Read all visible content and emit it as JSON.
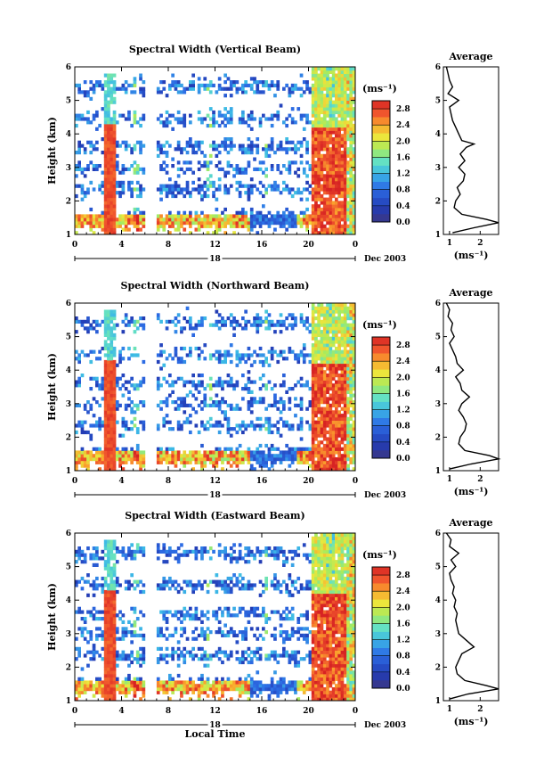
{
  "chart_data": [
    {
      "type": "heatmap",
      "title": "Spectral Width (Vertical Beam)",
      "ylabel": "Height (km)",
      "xlabel": "",
      "xlim": [
        0,
        24
      ],
      "ylim": [
        1,
        6
      ],
      "xticks": [
        "0",
        "4",
        "8",
        "12",
        "16",
        "20",
        "0"
      ],
      "yticks": [
        "1",
        "2",
        "3",
        "4",
        "5",
        "6"
      ],
      "date_axis": {
        "day": "18",
        "suffix": "Dec 2003"
      },
      "colorbar": {
        "unit": "(ms⁻¹)",
        "ticks": [
          "0.0",
          "0.4",
          "0.8",
          "1.2",
          "1.6",
          "2.0",
          "2.4",
          "2.8"
        ],
        "range": [
          0,
          3.0
        ]
      },
      "profile": {
        "title": "Average",
        "xlabel": "(ms⁻¹)",
        "xticks": [
          "1",
          "2"
        ],
        "xlim": [
          0.8,
          2.6
        ],
        "heights": [
          1.05,
          1.2,
          1.35,
          1.45,
          1.6,
          1.8,
          2.0,
          2.2,
          2.4,
          2.6,
          2.8,
          3.0,
          3.2,
          3.4,
          3.6,
          3.7,
          3.8,
          4.0,
          4.2,
          4.4,
          4.6,
          4.8,
          5.0,
          5.2,
          5.4,
          5.6,
          5.8,
          6.0
        ],
        "values": [
          1.1,
          1.8,
          2.6,
          2.2,
          1.4,
          1.15,
          1.2,
          1.35,
          1.25,
          1.45,
          1.5,
          1.3,
          1.5,
          1.35,
          1.55,
          1.8,
          1.4,
          1.3,
          1.2,
          1.1,
          1.05,
          1.0,
          1.3,
          0.95,
          1.1,
          1.0,
          0.95,
          0.9
        ]
      }
    },
    {
      "type": "heatmap",
      "title": "Spectral Width (Northward Beam)",
      "ylabel": "Height (km)",
      "xlabel": "",
      "xlim": [
        0,
        24
      ],
      "ylim": [
        1,
        6
      ],
      "xticks": [
        "0",
        "4",
        "8",
        "12",
        "16",
        "20",
        "0"
      ],
      "yticks": [
        "1",
        "2",
        "3",
        "4",
        "5",
        "6"
      ],
      "date_axis": {
        "day": "18",
        "suffix": "Dec 2003"
      },
      "colorbar": {
        "unit": "(ms⁻¹)",
        "ticks": [
          "0.0",
          "0.4",
          "0.8",
          "1.2",
          "1.6",
          "2.0",
          "2.4",
          "2.8"
        ],
        "range": [
          0,
          3.0
        ]
      },
      "profile": {
        "title": "Average",
        "xlabel": "(ms⁻¹)",
        "xticks": [
          "1",
          "2"
        ],
        "xlim": [
          0.8,
          2.6
        ],
        "heights": [
          1.05,
          1.2,
          1.35,
          1.45,
          1.6,
          1.8,
          2.0,
          2.2,
          2.4,
          2.6,
          2.8,
          3.0,
          3.2,
          3.4,
          3.6,
          3.8,
          4.0,
          4.2,
          4.4,
          4.6,
          4.8,
          5.0,
          5.2,
          5.4,
          5.6,
          5.8,
          6.0
        ],
        "values": [
          1.0,
          1.7,
          2.6,
          2.3,
          1.5,
          1.3,
          1.35,
          1.5,
          1.55,
          1.45,
          1.3,
          1.4,
          1.65,
          1.4,
          1.35,
          1.2,
          1.45,
          1.25,
          1.2,
          1.1,
          1.0,
          1.15,
          1.05,
          1.1,
          0.95,
          1.0,
          0.9
        ]
      }
    },
    {
      "type": "heatmap",
      "title": "Spectral Width (Eastward Beam)",
      "ylabel": "Height (km)",
      "xlabel": "Local Time",
      "xlim": [
        0,
        24
      ],
      "ylim": [
        1,
        6
      ],
      "xticks": [
        "0",
        "4",
        "8",
        "12",
        "16",
        "20",
        "0"
      ],
      "yticks": [
        "1",
        "2",
        "3",
        "4",
        "5",
        "6"
      ],
      "date_axis": {
        "day": "18",
        "suffix": "Dec 2003"
      },
      "colorbar": {
        "unit": "(ms⁻¹)",
        "ticks": [
          "0.0",
          "0.4",
          "0.8",
          "1.2",
          "1.6",
          "2.0",
          "2.4",
          "2.8"
        ],
        "range": [
          0,
          3.0
        ]
      },
      "profile": {
        "title": "Average",
        "xlabel": "(ms⁻¹)",
        "xticks": [
          "1",
          "2"
        ],
        "xlim": [
          0.8,
          2.6
        ],
        "heights": [
          1.05,
          1.2,
          1.35,
          1.45,
          1.6,
          1.8,
          2.0,
          2.2,
          2.4,
          2.6,
          2.8,
          3.0,
          3.2,
          3.4,
          3.6,
          3.8,
          4.0,
          4.2,
          4.4,
          4.6,
          4.8,
          5.0,
          5.2,
          5.4,
          5.6,
          5.8,
          6.0
        ],
        "values": [
          1.0,
          1.6,
          2.6,
          2.2,
          1.5,
          1.25,
          1.2,
          1.3,
          1.4,
          1.8,
          1.55,
          1.3,
          1.25,
          1.2,
          1.25,
          1.15,
          1.2,
          1.1,
          1.15,
          1.05,
          1.0,
          1.2,
          1.05,
          1.3,
          1.0,
          1.05,
          0.9
        ]
      }
    }
  ]
}
